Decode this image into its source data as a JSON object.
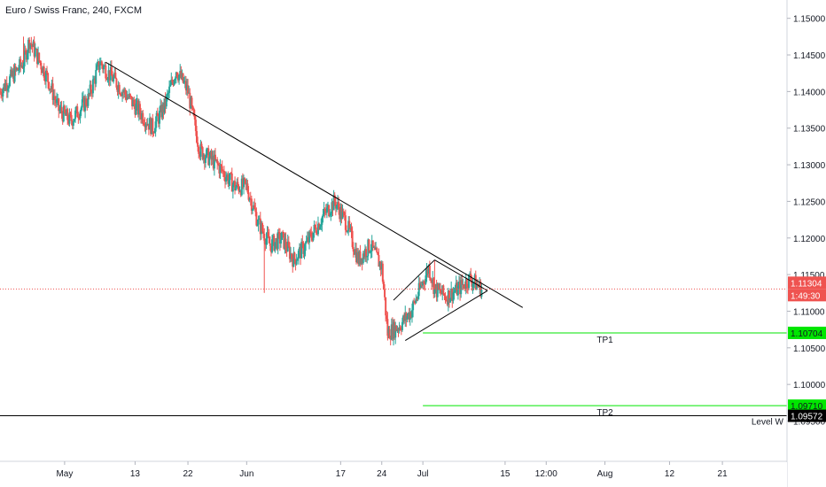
{
  "header": {
    "title": "Euro / Swiss Franc, 240, FXCM"
  },
  "colors": {
    "up": "#26a69a",
    "down": "#ef5350",
    "trendline": "#000000",
    "tp_line": "#00e600",
    "level_line": "#000000",
    "current_price_line": "#ef5350",
    "axis_text": "#131722"
  },
  "chart_data": {
    "type": "candlestick",
    "title": "Euro / Swiss Franc, 240, FXCM",
    "y_ticks": [
      "1.15000",
      "1.14500",
      "1.14000",
      "1.13500",
      "1.13000",
      "1.12500",
      "1.12000",
      "1.11500",
      "1.11000",
      "1.10500",
      "1.10000",
      "1.09500"
    ],
    "y_range": [
      1.0895,
      1.1525
    ],
    "x_ticks": [
      {
        "label": "May",
        "date": "2019-05-01"
      },
      {
        "label": "13",
        "date": "2019-05-13"
      },
      {
        "label": "22",
        "date": "2019-05-22"
      },
      {
        "label": "Jun",
        "date": "2019-06-01"
      },
      {
        "label": "17",
        "date": "2019-06-17"
      },
      {
        "label": "24",
        "date": "2019-06-24"
      },
      {
        "label": "Jul",
        "date": "2019-07-01"
      },
      {
        "label": "15",
        "date": "2019-07-15"
      },
      {
        "label": "12:00",
        "date": "2019-07-22"
      },
      {
        "label": "Aug",
        "date": "2019-08-01"
      },
      {
        "label": "12",
        "date": "2019-08-12"
      },
      {
        "label": "21",
        "date": "2019-08-21"
      }
    ],
    "x_range": [
      "2019-04-20",
      "2019-09-01"
    ],
    "price_path": [
      [
        "2019-04-20",
        1.14
      ],
      [
        "2019-04-24",
        1.144
      ],
      [
        "2019-04-25",
        1.147
      ],
      [
        "2019-04-28",
        1.142
      ],
      [
        "2019-04-30",
        1.1375
      ],
      [
        "2019-05-02",
        1.136
      ],
      [
        "2019-05-05",
        1.139
      ],
      [
        "2019-05-07",
        1.144
      ],
      [
        "2019-05-10",
        1.141
      ],
      [
        "2019-05-13",
        1.138
      ],
      [
        "2019-05-16",
        1.135
      ],
      [
        "2019-05-18",
        1.138
      ],
      [
        "2019-05-20",
        1.143
      ],
      [
        "2019-05-22",
        1.14
      ],
      [
        "2019-05-24",
        1.132
      ],
      [
        "2019-05-27",
        1.13
      ],
      [
        "2019-05-30",
        1.127
      ],
      [
        "2019-06-01",
        1.127
      ],
      [
        "2019-06-03",
        1.122
      ],
      [
        "2019-06-05",
        1.119
      ],
      [
        "2019-06-07",
        1.12
      ],
      [
        "2019-06-09",
        1.117
      ],
      [
        "2019-06-11",
        1.119
      ],
      [
        "2019-06-14",
        1.123
      ],
      [
        "2019-06-16",
        1.125
      ],
      [
        "2019-06-18",
        1.122
      ],
      [
        "2019-06-20",
        1.117
      ],
      [
        "2019-06-22",
        1.119
      ],
      [
        "2019-06-24",
        1.116
      ],
      [
        "2019-06-25",
        1.107
      ],
      [
        "2019-06-27",
        1.108
      ],
      [
        "2019-06-29",
        1.11
      ],
      [
        "2019-07-01",
        1.114
      ],
      [
        "2019-07-02",
        1.116
      ],
      [
        "2019-07-03",
        1.113
      ],
      [
        "2019-07-05",
        1.112
      ],
      [
        "2019-07-07",
        1.113
      ],
      [
        "2019-07-09",
        1.1145
      ],
      [
        "2019-07-11",
        1.113
      ]
    ],
    "price_extremes": [
      {
        "date": "2019-04-24",
        "value": 1.1475
      },
      {
        "date": "2019-06-04",
        "value": 1.1125
      },
      {
        "date": "2019-06-25",
        "value": 1.106
      },
      {
        "date": "2019-07-03",
        "value": 1.117
      }
    ],
    "trendline": {
      "start": [
        "2019-05-08",
        1.144
      ],
      "end": [
        "2019-07-18",
        1.1105
      ]
    },
    "pattern": {
      "upper": {
        "start": [
          "2019-06-26",
          1.1115
        ],
        "end": [
          "2019-07-03",
          1.117
        ]
      },
      "lower": {
        "start": [
          "2019-06-28",
          1.106
        ],
        "end": [
          "2019-07-12",
          1.1128
        ]
      },
      "close": {
        "start": [
          "2019-07-03",
          1.117
        ],
        "end": [
          "2019-07-12",
          1.1128
        ]
      }
    },
    "levels": [
      {
        "name": "TP1",
        "value": 1.10704,
        "label": "1.10704",
        "start": "2019-07-01"
      },
      {
        "name": "TP2",
        "value": 1.0971,
        "label": "1.09710",
        "start": "2019-07-01"
      },
      {
        "name": "Level W",
        "value": 1.09572,
        "label": "1.09572",
        "start": "2019-04-20"
      }
    ],
    "current_price": {
      "value": 1.11304,
      "label": "1.11304",
      "countdown": "1:49:30"
    }
  }
}
